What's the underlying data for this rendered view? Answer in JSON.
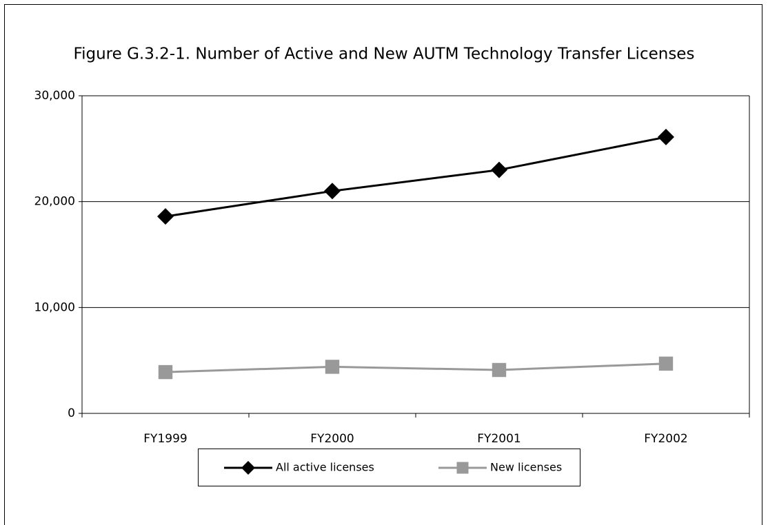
{
  "chart_data": {
    "type": "line",
    "title": "Figure G.3.2-1. Number of Active and New AUTM Technology Transfer Licenses",
    "categories": [
      "FY1999",
      "FY2000",
      "FY2001",
      "FY2002"
    ],
    "series": [
      {
        "name": "All active licenses",
        "color": "#000000",
        "marker": "diamond",
        "values": [
          18600,
          21000,
          23000,
          26100
        ]
      },
      {
        "name": "New licenses",
        "color": "#999999",
        "marker": "square",
        "values": [
          3900,
          4400,
          4100,
          4700
        ]
      }
    ],
    "ylim": [
      0,
      30000
    ],
    "yticks": [
      0,
      {
        "value": 10000,
        "label": "10,000"
      },
      {
        "value": 20000,
        "label": "20,000"
      },
      {
        "value": 30000,
        "label": "30,000"
      }
    ],
    "grid": true,
    "legend": "bottom"
  }
}
